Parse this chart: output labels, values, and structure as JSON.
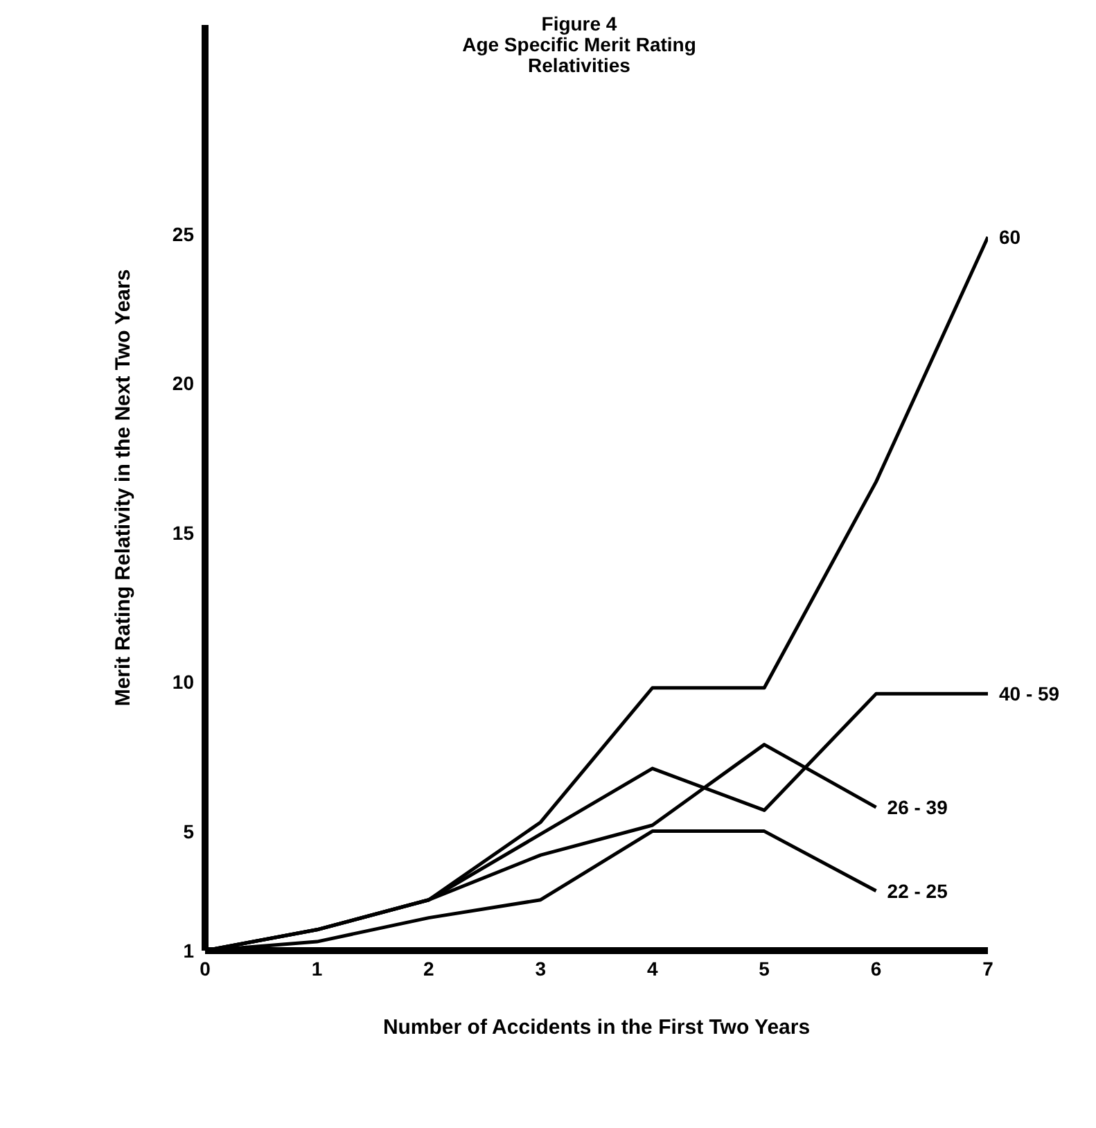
{
  "chart_data": {
    "type": "line",
    "title": "Figure 4",
    "subtitle": "Age Specific Merit Rating Relativities",
    "xlabel": "Number of Accidents in the First Two Years",
    "ylabel": "Merit Rating Relativity in the Next Two Years",
    "x": [
      0,
      1,
      2,
      3,
      4,
      5,
      6,
      7
    ],
    "series": [
      {
        "name": "60",
        "color": "#000000",
        "values": [
          1,
          1.7,
          2.7,
          5.3,
          9.8,
          9.8,
          16.7,
          24.9
        ]
      },
      {
        "name": "40 - 59",
        "color": "#000000",
        "values": [
          1,
          1.7,
          2.7,
          4.9,
          7.1,
          5.7,
          9.6,
          9.6
        ]
      },
      {
        "name": "26 - 39",
        "color": "#000000",
        "values": [
          1,
          1.7,
          2.7,
          4.2,
          5.2,
          7.9,
          5.8,
          null
        ]
      },
      {
        "name": "22 - 25",
        "color": "#000000",
        "values": [
          1,
          1.3,
          2.1,
          2.7,
          5.0,
          5.0,
          3.0,
          null
        ]
      }
    ],
    "xlim": [
      0,
      7
    ],
    "xticks": [
      0,
      1,
      2,
      3,
      4,
      5,
      6,
      7
    ],
    "ylim": [
      1,
      32
    ],
    "yticks": [
      1,
      5,
      10,
      15,
      20,
      25
    ],
    "grid": false,
    "legend": false,
    "marker": "none",
    "line_style": "solid"
  }
}
